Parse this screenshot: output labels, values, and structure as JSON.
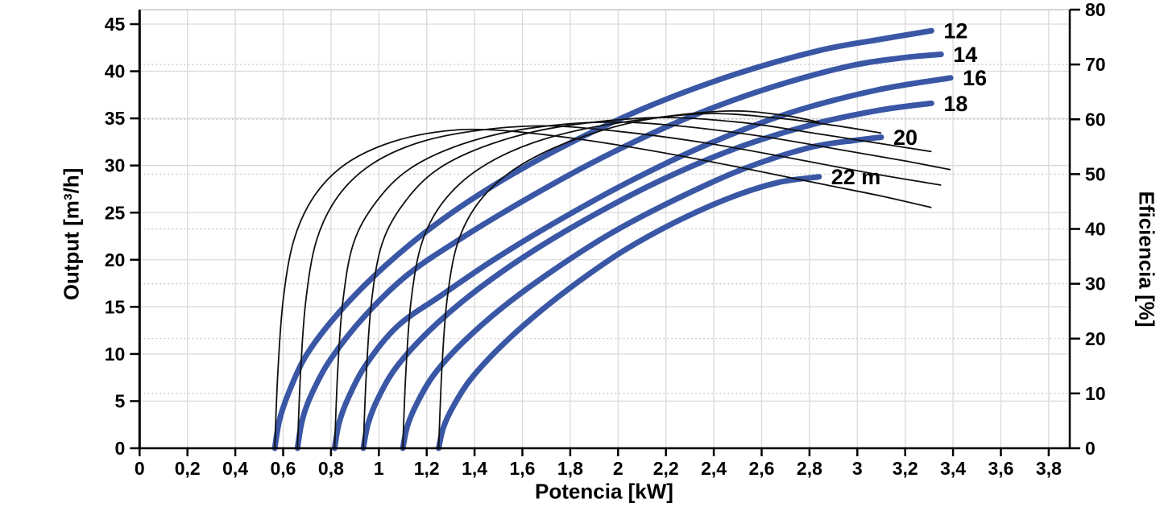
{
  "chart_data": {
    "type": "line",
    "title": "",
    "xlabel": "Potencia [kW]",
    "ylabel_left": "Output [m³/h]",
    "ylabel_right": "Eficiencia [%]",
    "x_axis": {
      "min": 0,
      "max": 3.8,
      "grid": true,
      "tick_values": [
        0,
        0.2,
        0.4,
        0.6,
        0.8,
        1,
        1.2,
        1.4,
        1.6,
        1.8,
        2,
        2.2,
        2.4,
        2.6,
        2.8,
        3,
        3.2,
        3.4,
        3.6,
        3.8
      ],
      "tick_labels": [
        "0",
        "0,2",
        "0,4",
        "0,6",
        "0,8",
        "1",
        "1,2",
        "1,4",
        "1,6",
        "1,8",
        "2",
        "2,2",
        "2,4",
        "2,6",
        "2,8",
        "3",
        "3,2",
        "3,4",
        "3,6",
        "3,8"
      ]
    },
    "left_axis": {
      "min": 0,
      "max": 45,
      "grid": true,
      "tick_values": [
        0,
        5,
        10,
        15,
        20,
        25,
        30,
        35,
        40,
        45
      ],
      "tick_labels": [
        "0",
        "5",
        "10",
        "15",
        "20",
        "25",
        "30",
        "35",
        "40",
        "45"
      ]
    },
    "right_axis": {
      "min": 0,
      "max": 80,
      "grid": "dotted",
      "tick_values": [
        0,
        10,
        20,
        30,
        40,
        50,
        60,
        70,
        80
      ],
      "tick_labels": [
        "0",
        "10",
        "20",
        "30",
        "40",
        "50",
        "60",
        "70",
        "80"
      ]
    },
    "series": [
      {
        "head": "12",
        "label": "12",
        "axis": "left",
        "role": "pump-curve",
        "points": [
          [
            0.565,
            0
          ],
          [
            0.585,
            3
          ],
          [
            0.625,
            6
          ],
          [
            0.7,
            10
          ],
          [
            0.84,
            14.6
          ],
          [
            1.02,
            19.2
          ],
          [
            1.24,
            23.8
          ],
          [
            1.5,
            28.2
          ],
          [
            1.8,
            32.4
          ],
          [
            2.13,
            36.3
          ],
          [
            2.48,
            39.6
          ],
          [
            2.84,
            42.2
          ],
          [
            3.1,
            43.4
          ],
          [
            3.31,
            44.3
          ]
        ]
      },
      {
        "head": "14",
        "label": "14",
        "axis": "left",
        "role": "pump-curve",
        "points": [
          [
            0.66,
            0
          ],
          [
            0.68,
            3
          ],
          [
            0.72,
            5.8
          ],
          [
            0.8,
            9.5
          ],
          [
            0.94,
            14
          ],
          [
            1.12,
            18.4
          ],
          [
            1.34,
            22.2
          ],
          [
            1.6,
            26.2
          ],
          [
            1.9,
            30.4
          ],
          [
            2.23,
            34.4
          ],
          [
            2.58,
            37.8
          ],
          [
            2.94,
            40.4
          ],
          [
            3.18,
            41.4
          ],
          [
            3.35,
            41.8
          ]
        ]
      },
      {
        "head": "16",
        "label": "16",
        "axis": "left",
        "role": "pump-curve",
        "points": [
          [
            0.815,
            0
          ],
          [
            0.835,
            2.8
          ],
          [
            0.875,
            5.5
          ],
          [
            0.95,
            9
          ],
          [
            1.08,
            13
          ],
          [
            1.26,
            16.2
          ],
          [
            1.48,
            20.0
          ],
          [
            1.74,
            24.0
          ],
          [
            2.04,
            28.2
          ],
          [
            2.37,
            32.2
          ],
          [
            2.72,
            35.6
          ],
          [
            3.08,
            38.0
          ],
          [
            3.39,
            39.3
          ]
        ]
      },
      {
        "head": "18",
        "label": "18",
        "axis": "left",
        "role": "pump-curve",
        "points": [
          [
            0.935,
            0
          ],
          [
            0.955,
            2.6
          ],
          [
            0.995,
            5.2
          ],
          [
            1.07,
            8.5
          ],
          [
            1.2,
            12.2
          ],
          [
            1.38,
            16.2
          ],
          [
            1.6,
            20.2
          ],
          [
            1.86,
            24.2
          ],
          [
            2.16,
            28.2
          ],
          [
            2.49,
            31.8
          ],
          [
            2.82,
            34.4
          ],
          [
            3.1,
            35.9
          ],
          [
            3.31,
            36.6
          ]
        ]
      },
      {
        "head": "20",
        "label": "20",
        "axis": "left",
        "role": "pump-curve",
        "points": [
          [
            1.1,
            0
          ],
          [
            1.12,
            2.4
          ],
          [
            1.16,
            4.8
          ],
          [
            1.23,
            7.8
          ],
          [
            1.35,
            11.2
          ],
          [
            1.52,
            15.0
          ],
          [
            1.73,
            18.9
          ],
          [
            1.97,
            22.8
          ],
          [
            2.24,
            26.4
          ],
          [
            2.52,
            29.6
          ],
          [
            2.8,
            31.9
          ],
          [
            3.0,
            32.7
          ],
          [
            3.1,
            33.0
          ]
        ]
      },
      {
        "head": "22",
        "label": "22 m",
        "axis": "left",
        "role": "pump-curve",
        "points": [
          [
            1.25,
            0
          ],
          [
            1.27,
            2.2
          ],
          [
            1.31,
            4.4
          ],
          [
            1.38,
            7.2
          ],
          [
            1.49,
            10.3
          ],
          [
            1.64,
            13.8
          ],
          [
            1.82,
            17.4
          ],
          [
            2.02,
            20.9
          ],
          [
            2.24,
            24.0
          ],
          [
            2.47,
            26.6
          ],
          [
            2.67,
            28.2
          ],
          [
            2.84,
            28.8
          ]
        ]
      }
    ],
    "efficiency_series": [
      {
        "head": "12",
        "axis": "right",
        "role": "efficiency-curve",
        "points": [
          [
            0.565,
            0
          ],
          [
            0.578,
            14
          ],
          [
            0.6,
            27
          ],
          [
            0.645,
            38
          ],
          [
            0.73,
            46
          ],
          [
            0.86,
            51.8
          ],
          [
            1.05,
            55.8
          ],
          [
            1.28,
            57.9
          ],
          [
            1.5,
            58
          ],
          [
            1.8,
            56.6
          ],
          [
            2.15,
            54.2
          ],
          [
            2.5,
            51.3
          ],
          [
            2.85,
            48.2
          ],
          [
            3.1,
            46
          ],
          [
            3.31,
            43.9
          ]
        ]
      },
      {
        "head": "14",
        "axis": "right",
        "role": "efficiency-curve",
        "points": [
          [
            0.66,
            0
          ],
          [
            0.673,
            14
          ],
          [
            0.695,
            27
          ],
          [
            0.74,
            38
          ],
          [
            0.83,
            46
          ],
          [
            0.97,
            51.8
          ],
          [
            1.17,
            55.8
          ],
          [
            1.42,
            58
          ],
          [
            1.7,
            58.8
          ],
          [
            2.0,
            57.8
          ],
          [
            2.35,
            55.8
          ],
          [
            2.7,
            53.1
          ],
          [
            3.05,
            50.2
          ],
          [
            3.35,
            48
          ]
        ]
      },
      {
        "head": "16",
        "axis": "right",
        "role": "efficiency-curve",
        "points": [
          [
            0.815,
            0
          ],
          [
            0.828,
            14
          ],
          [
            0.85,
            27
          ],
          [
            0.895,
            37.5
          ],
          [
            0.99,
            45
          ],
          [
            1.13,
            51
          ],
          [
            1.35,
            55.5
          ],
          [
            1.62,
            58.3
          ],
          [
            1.95,
            59.5
          ],
          [
            2.25,
            58.8
          ],
          [
            2.6,
            56.9
          ],
          [
            2.95,
            54.3
          ],
          [
            3.2,
            52.4
          ],
          [
            3.39,
            50.8
          ]
        ]
      },
      {
        "head": "18",
        "axis": "right",
        "role": "efficiency-curve",
        "points": [
          [
            0.935,
            0
          ],
          [
            0.948,
            14
          ],
          [
            0.97,
            27
          ],
          [
            1.015,
            37.5
          ],
          [
            1.11,
            45
          ],
          [
            1.25,
            51
          ],
          [
            1.47,
            55.5
          ],
          [
            1.75,
            58.6
          ],
          [
            2.15,
            60.3
          ],
          [
            2.5,
            59.5
          ],
          [
            2.8,
            57.6
          ],
          [
            3.05,
            55.9
          ],
          [
            3.31,
            54.1
          ]
        ]
      },
      {
        "head": "20",
        "axis": "right",
        "role": "efficiency-curve",
        "points": [
          [
            1.1,
            0
          ],
          [
            1.113,
            14
          ],
          [
            1.135,
            27
          ],
          [
            1.18,
            37.5
          ],
          [
            1.27,
            45
          ],
          [
            1.42,
            51
          ],
          [
            1.65,
            55.8
          ],
          [
            1.95,
            59
          ],
          [
            2.35,
            61
          ],
          [
            2.65,
            60.3
          ],
          [
            2.9,
            58.9
          ],
          [
            3.1,
            57.5
          ]
        ]
      },
      {
        "head": "22",
        "axis": "right",
        "role": "efficiency-curve",
        "points": [
          [
            1.25,
            0
          ],
          [
            1.263,
            14
          ],
          [
            1.285,
            27
          ],
          [
            1.33,
            37.5
          ],
          [
            1.42,
            45
          ],
          [
            1.57,
            51
          ],
          [
            1.8,
            56
          ],
          [
            2.1,
            59.8
          ],
          [
            2.45,
            61.5
          ],
          [
            2.68,
            60.8
          ],
          [
            2.84,
            59.5
          ]
        ]
      }
    ],
    "legend": "none",
    "curve_label_position": "right-of-curve-end"
  },
  "colors": {
    "pump_curve": "#3A57A6",
    "efficiency_curve": "#111111",
    "grid_solid": "#DADADA",
    "grid_dotted": "#C6C6C6",
    "plot_top_border": "#C9C9C9",
    "axis": "#000000",
    "text": "#000000",
    "background": "#FFFFFF"
  }
}
